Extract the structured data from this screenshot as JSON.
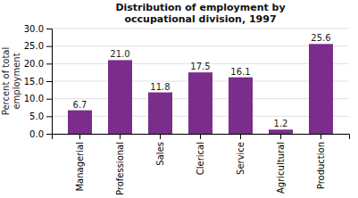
{
  "chart_data": {
    "type": "bar",
    "title": "Distribution of employment by\noccupational division, 1997",
    "categories": [
      "Managerial",
      "Professional",
      "Sales",
      "Clerical",
      "Service",
      "Agricultural",
      "Production"
    ],
    "values": [
      6.7,
      21.0,
      11.8,
      17.5,
      16.1,
      1.2,
      25.6
    ],
    "value_labels": [
      "6.7",
      "21.0",
      "11.8",
      "17.5",
      "16.1",
      "1.2",
      "25.6"
    ],
    "data_labels": true,
    "color": "#7B2D8B",
    "ylabel": "Percent of total\nemployment",
    "ylim": [
      0,
      30
    ],
    "yticks": [
      {
        "value": 0,
        "label": "0.0"
      },
      {
        "value": 5,
        "label": "5.0"
      },
      {
        "value": 10,
        "label": "10.0"
      },
      {
        "value": 15,
        "label": "15.0"
      },
      {
        "value": 20,
        "label": "20.0"
      },
      {
        "value": 25,
        "label": "25.0"
      },
      {
        "value": 30,
        "label": "30.0"
      }
    ],
    "grid": true
  }
}
